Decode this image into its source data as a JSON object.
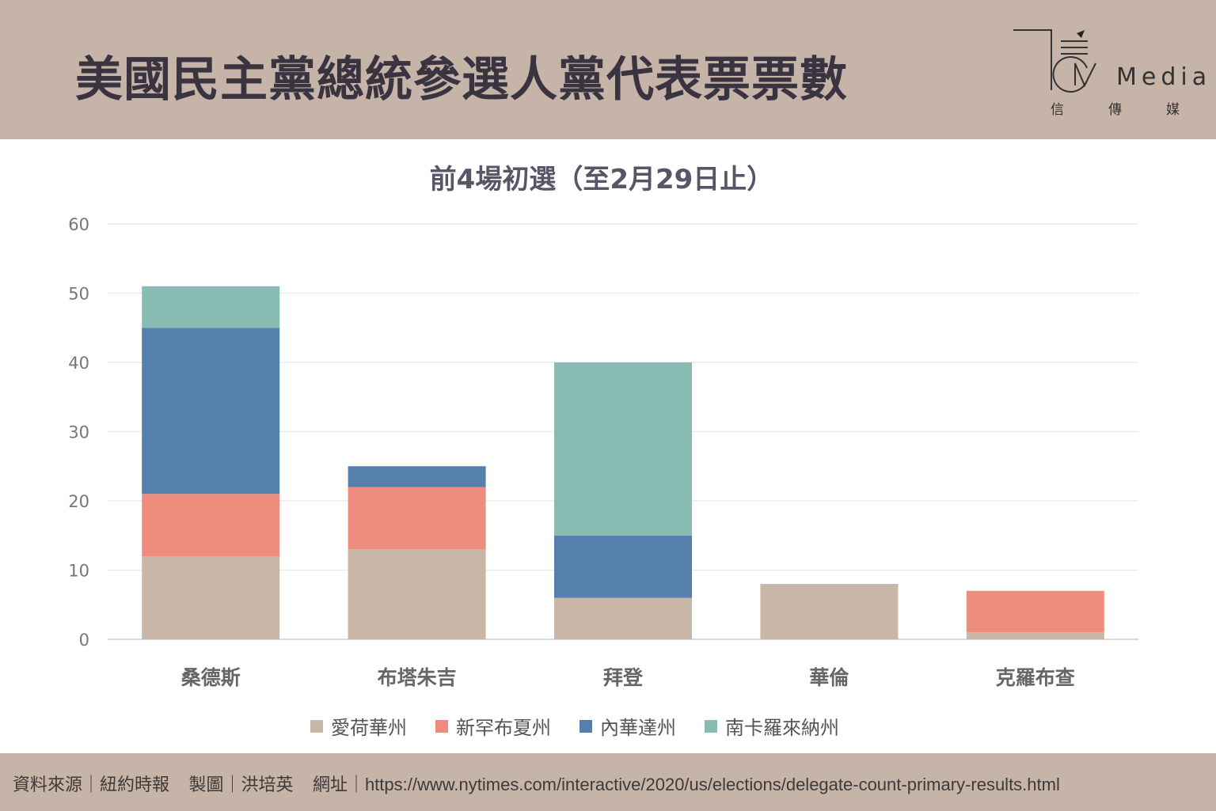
{
  "header": {
    "title": "美國民主黨總統參選人黨代表票票數"
  },
  "logo": {
    "text": "Media",
    "sub": [
      "信",
      "傳",
      "媒"
    ]
  },
  "chart_data": {
    "type": "bar",
    "stacked": true,
    "title": "前4場初選（至2月29日止）",
    "categories": [
      "桑德斯",
      "布塔朱吉",
      "拜登",
      "華倫",
      "克羅布查"
    ],
    "series": [
      {
        "name": "愛荷華州",
        "color": "#c8b6a6",
        "values": [
          12,
          13,
          6,
          8,
          1
        ]
      },
      {
        "name": "新罕布夏州",
        "color": "#ee8c7e",
        "values": [
          9,
          9,
          0,
          0,
          6
        ]
      },
      {
        "name": "內華達州",
        "color": "#5580ad",
        "values": [
          24,
          3,
          9,
          0,
          0
        ]
      },
      {
        "name": "南卡羅來納州",
        "color": "#88bcb3",
        "values": [
          6,
          0,
          25,
          0,
          0
        ]
      }
    ],
    "yticks": [
      0,
      10,
      20,
      30,
      40,
      50,
      60
    ],
    "ylim": [
      0,
      60
    ],
    "grid": true,
    "legend": "bottom",
    "xlabel": "",
    "ylabel": ""
  },
  "footer": {
    "source_label": "資料來源｜紐約時報",
    "maker_label": "製圖｜洪培英",
    "url_label": "網址｜https://www.nytimes.com/interactive/2020/us/elections/delegate-count-primary-results.html"
  }
}
